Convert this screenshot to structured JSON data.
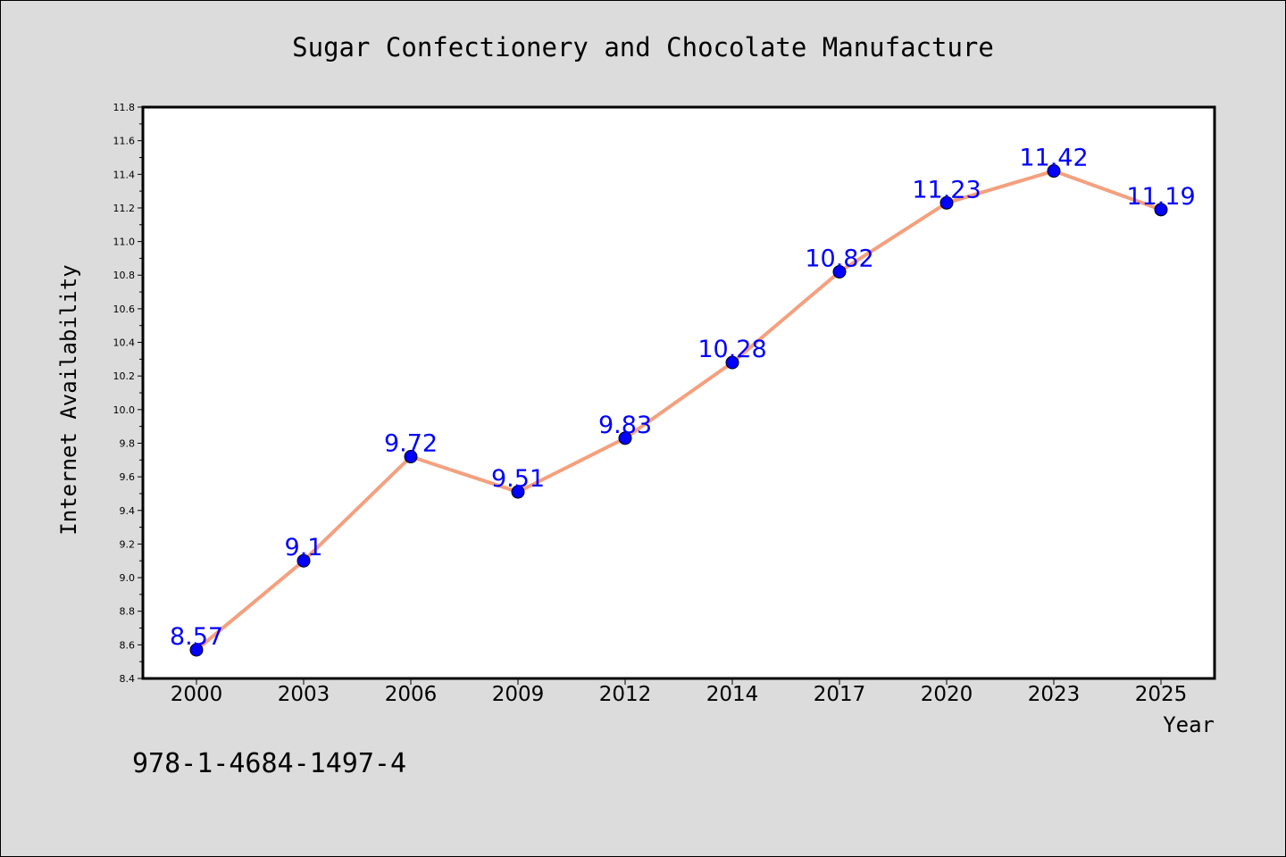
{
  "footer_code": "978-1-4684-1497-4",
  "colors": {
    "background": "#dcdcdc",
    "plot_background": "#ffffff",
    "line": "#f4a07e",
    "marker": "#0000ff",
    "data_label": "#0000ff",
    "text": "#000000"
  },
  "chart_data": {
    "type": "line",
    "title": "Sugar Confectionery and Chocolate Manufacture",
    "xlabel": "Year",
    "ylabel": "Internet Availability",
    "categories": [
      "2000",
      "2003",
      "2006",
      "2009",
      "2012",
      "2014",
      "2017",
      "2020",
      "2023",
      "2025"
    ],
    "series": [
      {
        "values": [
          8.57,
          9.1,
          9.72,
          9.51,
          9.83,
          10.28,
          10.82,
          11.23,
          11.42,
          11.19
        ]
      }
    ],
    "data_labels": [
      "8.57",
      "9.1",
      "9.72",
      "9.51",
      "9.83",
      "10.28",
      "10.82",
      "11.23",
      "11.42",
      "11.19"
    ],
    "ylim": [
      8.4,
      11.8
    ],
    "yticks": [
      "8.4",
      "8.6",
      "8.8",
      "9.0",
      "9.2",
      "9.4",
      "9.6",
      "9.8",
      "10.0",
      "10.2",
      "10.4",
      "10.6",
      "10.8",
      "11.0",
      "11.2",
      "11.4",
      "11.6",
      "11.8"
    ],
    "grid": false,
    "legend": "none"
  }
}
